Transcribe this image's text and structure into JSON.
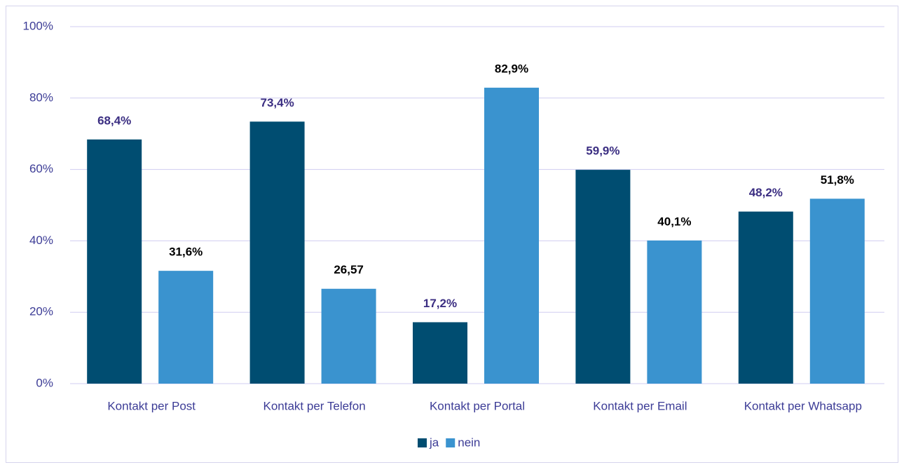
{
  "chart_data": {
    "type": "bar",
    "categories": [
      "Kontakt per Post",
      "Kontakt per Telefon",
      "Kontakt per Portal",
      "Kontakt per Email",
      "Kontakt per Whatsapp"
    ],
    "series": [
      {
        "name": "ja",
        "color": "#004d71",
        "label_color": "#3b2e82",
        "values": [
          68.4,
          73.4,
          17.2,
          59.9,
          48.2
        ],
        "value_labels": [
          "68,4%",
          "73,4%",
          "17,2%",
          "59,9%",
          "48,2%"
        ]
      },
      {
        "name": "nein",
        "color": "#3a93cf",
        "label_color": "#000000",
        "values": [
          31.6,
          26.57,
          82.9,
          40.1,
          51.8
        ],
        "value_labels": [
          "31,6%",
          "26,57",
          "82,9%",
          "40,1%",
          "51,8%"
        ]
      }
    ],
    "ylim": [
      0,
      100
    ],
    "yticks": [
      {
        "value": 0,
        "label": "0%"
      },
      {
        "value": 20,
        "label": "20%"
      },
      {
        "value": 40,
        "label": "40%"
      },
      {
        "value": 60,
        "label": "60%"
      },
      {
        "value": 80,
        "label": "80%"
      },
      {
        "value": 100,
        "label": "100%"
      }
    ],
    "grid": true,
    "legend": "bottom"
  }
}
